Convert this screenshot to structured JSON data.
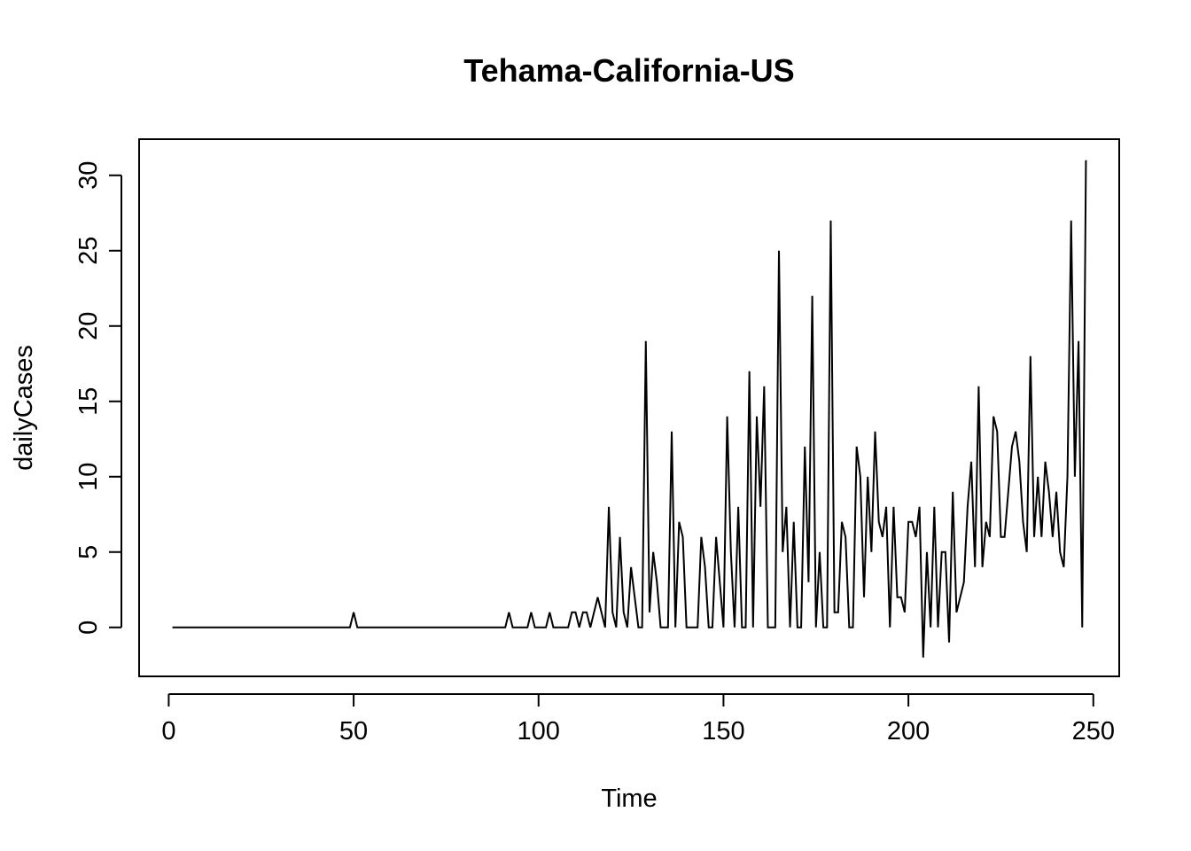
{
  "chart_data": {
    "type": "line",
    "title": "Tehama-California-US",
    "xlabel": "Time",
    "ylabel": "dailyCases",
    "xlim": [
      -8,
      257
    ],
    "ylim": [
      -3.25,
      32.4
    ],
    "x_ticks": [
      0,
      50,
      100,
      150,
      200,
      250
    ],
    "y_ticks": [
      0,
      5,
      10,
      15,
      20,
      25,
      30
    ],
    "x_tick_labels": [
      "0",
      "50",
      "100",
      "150",
      "200",
      "250"
    ],
    "y_tick_labels": [
      "0",
      "5",
      "10",
      "15",
      "20",
      "25",
      "30"
    ],
    "grid": false,
    "series": [
      {
        "color": "#000000",
        "x": [
          1,
          2,
          3,
          4,
          5,
          6,
          7,
          8,
          9,
          10,
          11,
          12,
          13,
          14,
          15,
          16,
          17,
          18,
          19,
          20,
          21,
          22,
          23,
          24,
          25,
          26,
          27,
          28,
          29,
          30,
          31,
          32,
          33,
          34,
          35,
          36,
          37,
          38,
          39,
          40,
          41,
          42,
          43,
          44,
          45,
          46,
          47,
          48,
          49,
          50,
          51,
          52,
          53,
          54,
          55,
          56,
          57,
          58,
          59,
          60,
          61,
          62,
          63,
          64,
          65,
          66,
          67,
          68,
          69,
          70,
          71,
          72,
          73,
          74,
          75,
          76,
          77,
          78,
          79,
          80,
          81,
          82,
          83,
          84,
          85,
          86,
          87,
          88,
          89,
          90,
          91,
          92,
          93,
          94,
          95,
          96,
          97,
          98,
          99,
          100,
          101,
          102,
          103,
          104,
          105,
          106,
          107,
          108,
          109,
          110,
          111,
          112,
          113,
          114,
          115,
          116,
          117,
          118,
          119,
          120,
          121,
          122,
          123,
          124,
          125,
          126,
          127,
          128,
          129,
          130,
          131,
          132,
          133,
          134,
          135,
          136,
          137,
          138,
          139,
          140,
          141,
          142,
          143,
          144,
          145,
          146,
          147,
          148,
          149,
          150,
          151,
          152,
          153,
          154,
          155,
          156,
          157,
          158,
          159,
          160,
          161,
          162,
          163,
          164,
          165,
          166,
          167,
          168,
          169,
          170,
          171,
          172,
          173,
          174,
          175,
          176,
          177,
          178,
          179,
          180,
          181,
          182,
          183,
          184,
          185,
          186,
          187,
          188,
          189,
          190,
          191,
          192,
          193,
          194,
          195,
          196,
          197,
          198,
          199,
          200,
          201,
          202,
          203,
          204,
          205,
          206,
          207,
          208,
          209,
          210,
          211,
          212,
          213,
          214,
          215,
          216,
          217,
          218,
          219,
          220,
          221,
          222,
          223,
          224,
          225,
          226,
          227,
          228,
          229,
          230,
          231,
          232,
          233,
          234,
          235,
          236,
          237,
          238,
          239,
          240,
          241,
          242,
          243,
          244,
          245,
          246,
          247,
          248
        ],
        "y": [
          0,
          0,
          0,
          0,
          0,
          0,
          0,
          0,
          0,
          0,
          0,
          0,
          0,
          0,
          0,
          0,
          0,
          0,
          0,
          0,
          0,
          0,
          0,
          0,
          0,
          0,
          0,
          0,
          0,
          0,
          0,
          0,
          0,
          0,
          0,
          0,
          0,
          0,
          0,
          0,
          0,
          0,
          0,
          0,
          0,
          0,
          0,
          0,
          0,
          1,
          0,
          0,
          0,
          0,
          0,
          0,
          0,
          0,
          0,
          0,
          0,
          0,
          0,
          0,
          0,
          0,
          0,
          0,
          0,
          0,
          0,
          0,
          0,
          0,
          0,
          0,
          0,
          0,
          0,
          0,
          0,
          0,
          0,
          0,
          0,
          0,
          0,
          0,
          0,
          0,
          0,
          1,
          0,
          0,
          0,
          0,
          0,
          1,
          0,
          0,
          0,
          0,
          1,
          0,
          0,
          0,
          0,
          0,
          1,
          1,
          0,
          1,
          1,
          0,
          1,
          2,
          1,
          0,
          8,
          1,
          0,
          6,
          1,
          0,
          4,
          2,
          0,
          0,
          19,
          1,
          5,
          3,
          0,
          0,
          0,
          13,
          0,
          7,
          6,
          0,
          0,
          0,
          0,
          6,
          4,
          0,
          0,
          6,
          3,
          0,
          14,
          5,
          0,
          8,
          0,
          0,
          17,
          0,
          14,
          8,
          16,
          0,
          0,
          0,
          25,
          5,
          8,
          0,
          7,
          0,
          0,
          12,
          3,
          22,
          0,
          5,
          0,
          0,
          27,
          1,
          1,
          7,
          6,
          0,
          0,
          12,
          10,
          2,
          10,
          5,
          13,
          7,
          6,
          8,
          0,
          8,
          2,
          2,
          1,
          7,
          7,
          6,
          8,
          -2,
          5,
          0,
          8,
          0,
          5,
          5,
          -1,
          9,
          1,
          2,
          3,
          8,
          11,
          4,
          16,
          4,
          7,
          6,
          14,
          13,
          6,
          6,
          9,
          12,
          13,
          11,
          7,
          5,
          18,
          6,
          10,
          6,
          11,
          9,
          6,
          9,
          5,
          4,
          10,
          27,
          10,
          19,
          0,
          31
        ]
      }
    ]
  }
}
